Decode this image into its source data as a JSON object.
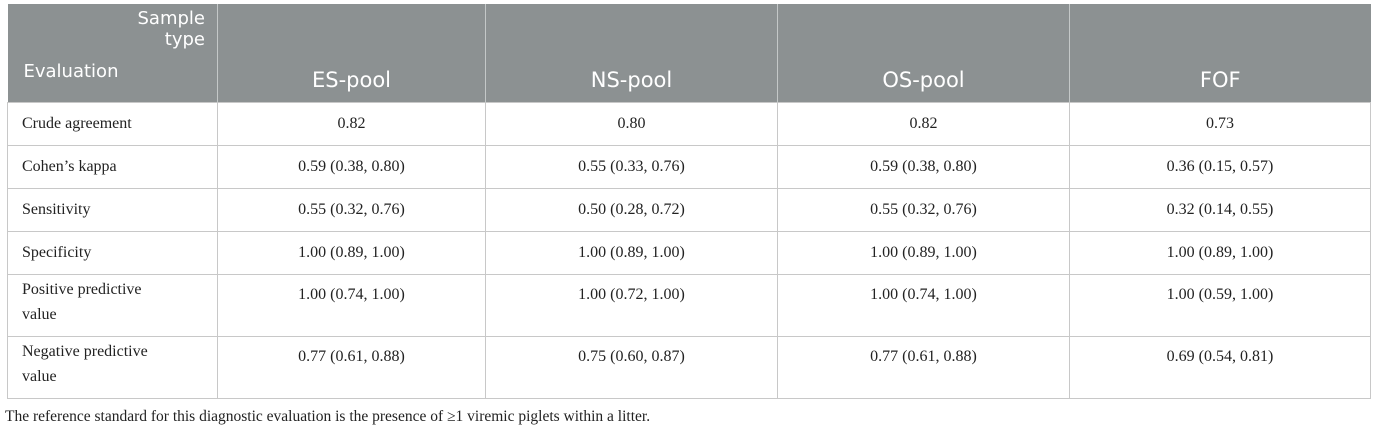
{
  "table": {
    "corner_top_line1": "Sample",
    "corner_top_line2": "type",
    "corner_bottom": "Evaluation",
    "columns": [
      "ES-pool",
      "NS-pool",
      "OS-pool",
      "FOF"
    ],
    "rows": [
      {
        "label": "Crude agreement",
        "values": [
          "0.82",
          "0.80",
          "0.82",
          "0.73"
        ]
      },
      {
        "label": "Cohen’s kappa",
        "values": [
          "0.59 (0.38, 0.80)",
          "0.55 (0.33, 0.76)",
          "0.59 (0.38, 0.80)",
          "0.36 (0.15, 0.57)"
        ]
      },
      {
        "label": "Sensitivity",
        "values": [
          "0.55 (0.32, 0.76)",
          "0.50 (0.28, 0.72)",
          "0.55 (0.32, 0.76)",
          "0.32 (0.14, 0.55)"
        ]
      },
      {
        "label": "Specificity",
        "values": [
          "1.00 (0.89, 1.00)",
          "1.00 (0.89, 1.00)",
          "1.00 (0.89, 1.00)",
          "1.00 (0.89, 1.00)"
        ]
      },
      {
        "label_line1": "Positive predictive",
        "label_line2": "value",
        "values": [
          "1.00 (0.74, 1.00)",
          "1.00 (0.72, 1.00)",
          "1.00 (0.74, 1.00)",
          "1.00 (0.59, 1.00)"
        ]
      },
      {
        "label_line1": "Negative predictive",
        "label_line2": "value",
        "values": [
          "0.77 (0.61, 0.88)",
          "0.75 (0.60, 0.87)",
          "0.77 (0.61, 0.88)",
          "0.69 (0.54, 0.81)"
        ]
      }
    ]
  },
  "footnote": "The reference standard for this diagnostic evaluation is the presence of ≥1 viremic piglets within a litter.",
  "colors": {
    "header_bg": "#8c9192",
    "header_text": "#ffffff",
    "grid": "#c8c8c8"
  }
}
